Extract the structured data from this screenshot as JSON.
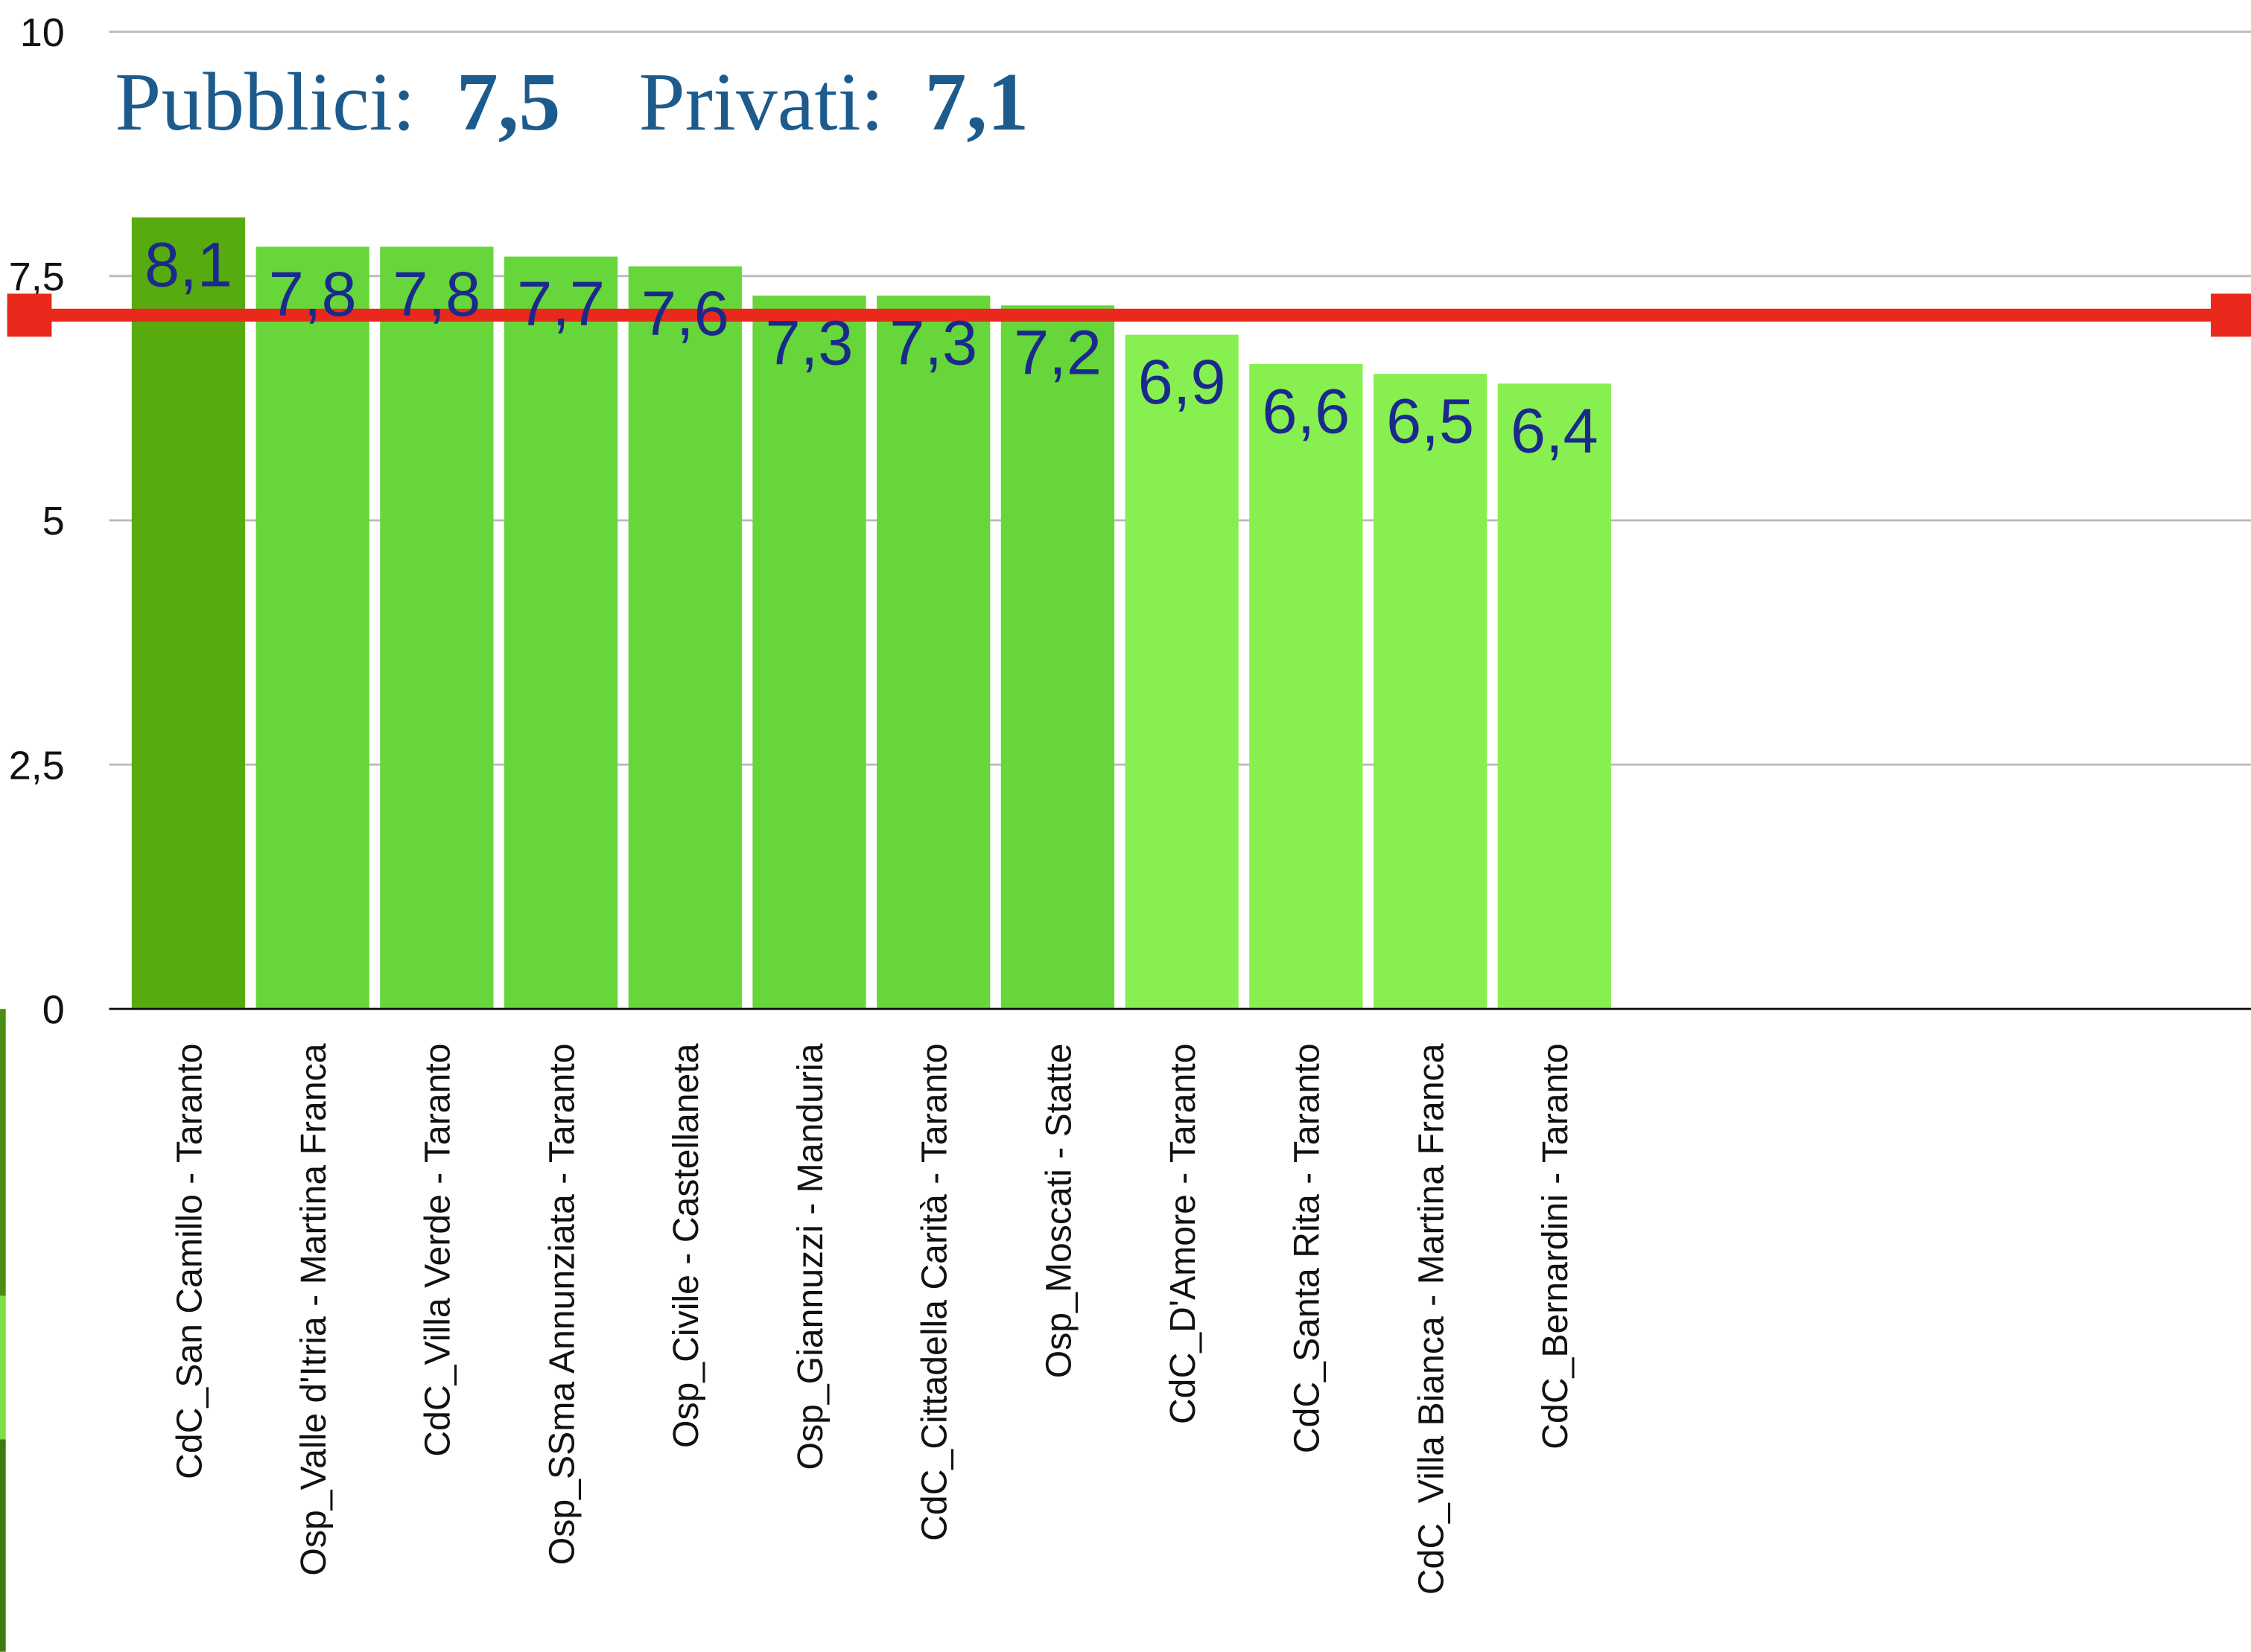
{
  "chart_data": {
    "type": "bar",
    "title_parts": [
      {
        "label": "Pubblici:",
        "value": "7,5"
      },
      {
        "label": "Privati:",
        "value": "7,1"
      }
    ],
    "categories": [
      "CdC_San Camillo - Taranto",
      "Osp_Valle d'Itria - Martina Franca",
      "CdC_Villa Verde - Taranto",
      "Osp_SSma Annunziata - Taranto",
      "Osp_Civile - Castellaneta",
      "Osp_Giannuzzi - Manduria",
      "CdC_Cittadella Carità - Taranto",
      "Osp_Moscati - Statte",
      "CdC_D'Amore - Taranto",
      "CdC_Santa Rita - Taranto",
      "CdC_Villa Bianca - Martina Franca",
      "CdC_Bernardini - Taranto"
    ],
    "values": [
      8.1,
      7.8,
      7.8,
      7.7,
      7.6,
      7.3,
      7.3,
      7.2,
      6.9,
      6.6,
      6.5,
      6.4
    ],
    "value_labels": [
      "8,1",
      "7,8",
      "7,8",
      "7,7",
      "7,6",
      "7,3",
      "7,3",
      "7,2",
      "6,9",
      "6,6",
      "6,5",
      "6,4"
    ],
    "colors": [
      "#57ab0f",
      "#66d63a",
      "#66d63a",
      "#66d63a",
      "#66d63a",
      "#66d63a",
      "#66d63a",
      "#66d63a",
      "#88ef50",
      "#88ef50",
      "#88ef50",
      "#88ef50"
    ],
    "ylim": [
      0,
      10
    ],
    "yticks": [
      0,
      {
        "value": 2.5,
        "label": "2,5"
      },
      5,
      {
        "value": 7.5,
        "label": "7,5"
      },
      10
    ],
    "grid": true,
    "reference_line": {
      "value": 7.1,
      "color": "#e8291b"
    }
  }
}
